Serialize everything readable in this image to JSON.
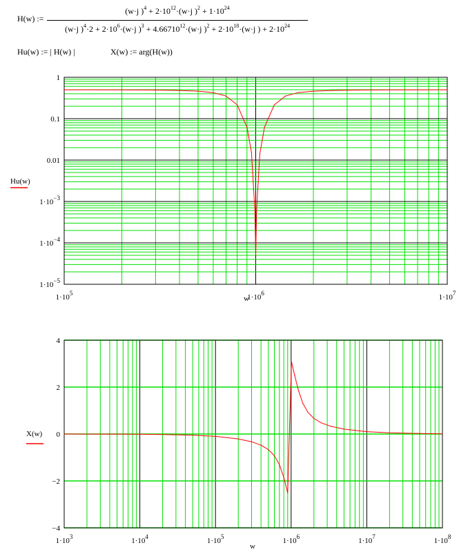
{
  "formula": {
    "lhs": "H(w) :=",
    "numerator": [
      {
        "t": "(w·j )"
      },
      {
        "sup": "4"
      },
      {
        "t": " + 2·10"
      },
      {
        "sup": "12"
      },
      {
        "t": "·(w·j )"
      },
      {
        "sup": "2"
      },
      {
        "t": " + 1·10"
      },
      {
        "sup": "24"
      }
    ],
    "denominator": [
      {
        "t": "(w·j )"
      },
      {
        "sup": "4"
      },
      {
        "t": "·2 + 2·10"
      },
      {
        "sup": "6"
      },
      {
        "t": "·(w·j )"
      },
      {
        "sup": "3"
      },
      {
        "t": " + 4.66710"
      },
      {
        "sup": "12"
      },
      {
        "t": "·(w·j )"
      },
      {
        "sup": "2"
      },
      {
        "t": " + 2·10"
      },
      {
        "sup": "18"
      },
      {
        "t": "·(w·j ) + 2·10"
      },
      {
        "sup": "24"
      }
    ],
    "hu_def": "Hu(w) := | H(w) |",
    "x_def": "X(w) := arg(H(w))"
  },
  "colors": {
    "trace": "#ff0000",
    "minor_grid": "#00e000",
    "major_grid": "#000000"
  },
  "chart_data": [
    {
      "type": "line",
      "x_scale": "log",
      "y_scale": "log",
      "xlim": [
        100000,
        10000000
      ],
      "ylim": [
        1e-05,
        1
      ],
      "xlabel": "w",
      "ylabel": "Hu(w)",
      "legend": {
        "name": "Hu(w)",
        "placement": "left"
      },
      "grid": true,
      "x_ticks": [
        {
          "v": 100000,
          "m": "1·10",
          "e": "5"
        },
        {
          "v": 1000000,
          "m": "1·10",
          "e": "6"
        },
        {
          "v": 10000000,
          "m": "1·10",
          "e": "7"
        }
      ],
      "y_ticks": [
        {
          "v": 1,
          "m": "1",
          "e": ""
        },
        {
          "v": 0.1,
          "m": "0.1",
          "e": ""
        },
        {
          "v": 0.01,
          "m": "0.01",
          "e": ""
        },
        {
          "v": 0.001,
          "m": "1·10",
          "e": "−3"
        },
        {
          "v": 0.0001,
          "m": "1·10",
          "e": "−4"
        },
        {
          "v": 1e-05,
          "m": "1·10",
          "e": "−5"
        }
      ],
      "series": [
        {
          "x": [
            100000,
            200000,
            300000,
            400000,
            500000,
            600000,
            700000,
            800000,
            900000,
            950000,
            990000,
            1000000,
            1010000,
            1050000,
            1111000,
            1250000,
            1429000,
            1667000,
            2000000,
            2500000,
            3333000,
            5000000,
            10000000
          ],
          "y": [
            0.4992,
            0.4964,
            0.4909,
            0.4809,
            0.4622,
            0.4258,
            0.3516,
            0.216,
            0.0623,
            0.01554,
            0.000606,
            5e-05,
            0.000593,
            0.01408,
            0.0623,
            0.216,
            0.3516,
            0.4258,
            0.4622,
            0.4809,
            0.4909,
            0.4964,
            0.4992
          ]
        }
      ]
    },
    {
      "type": "line",
      "x_scale": "log",
      "y_scale": "linear",
      "xlim": [
        1000,
        100000000
      ],
      "ylim": [
        -4,
        4
      ],
      "xlabel": "w",
      "ylabel": "X(w)",
      "legend": {
        "name": "X(w)",
        "placement": "left"
      },
      "grid": true,
      "x_ticks": [
        {
          "v": 1000,
          "m": "1·10",
          "e": "3"
        },
        {
          "v": 10000,
          "m": "1·10",
          "e": "4"
        },
        {
          "v": 100000,
          "m": "1·10",
          "e": "5"
        },
        {
          "v": 1000000,
          "m": "1·10",
          "e": "6"
        },
        {
          "v": 10000000,
          "m": "1·10",
          "e": "7"
        },
        {
          "v": 100000000,
          "m": "1·10",
          "e": "8"
        }
      ],
      "y_ticks": [
        {
          "v": 4,
          "m": "4",
          "e": ""
        },
        {
          "v": 2,
          "m": "2",
          "e": ""
        },
        {
          "v": 0,
          "m": "0",
          "e": ""
        },
        {
          "v": -2,
          "m": "−2",
          "e": ""
        },
        {
          "v": -4,
          "m": "−4",
          "e": ""
        }
      ],
      "series": [
        {
          "x": [
            1000,
            10000,
            20000,
            50000,
            100000,
            200000,
            300000,
            400000,
            500000,
            600000,
            700000,
            800000,
            900000,
            1010000,
            1111000,
            1250000,
            1429000,
            1667000,
            2000000,
            2500000,
            3333000,
            5000000,
            10000000,
            20000000,
            50000000,
            100000000
          ],
          "y": [
            -0.001,
            -0.01,
            -0.02,
            -0.0501,
            -0.1011,
            -0.2083,
            -0.3293,
            -0.4755,
            -0.6639,
            -0.9248,
            -1.3064,
            -1.8518,
            -2.5104,
            3.0819,
            2.5104,
            1.8518,
            1.3064,
            0.9248,
            0.6639,
            0.4755,
            0.3293,
            0.2083,
            0.1011,
            0.0501,
            0.02,
            0.01
          ]
        }
      ]
    }
  ]
}
